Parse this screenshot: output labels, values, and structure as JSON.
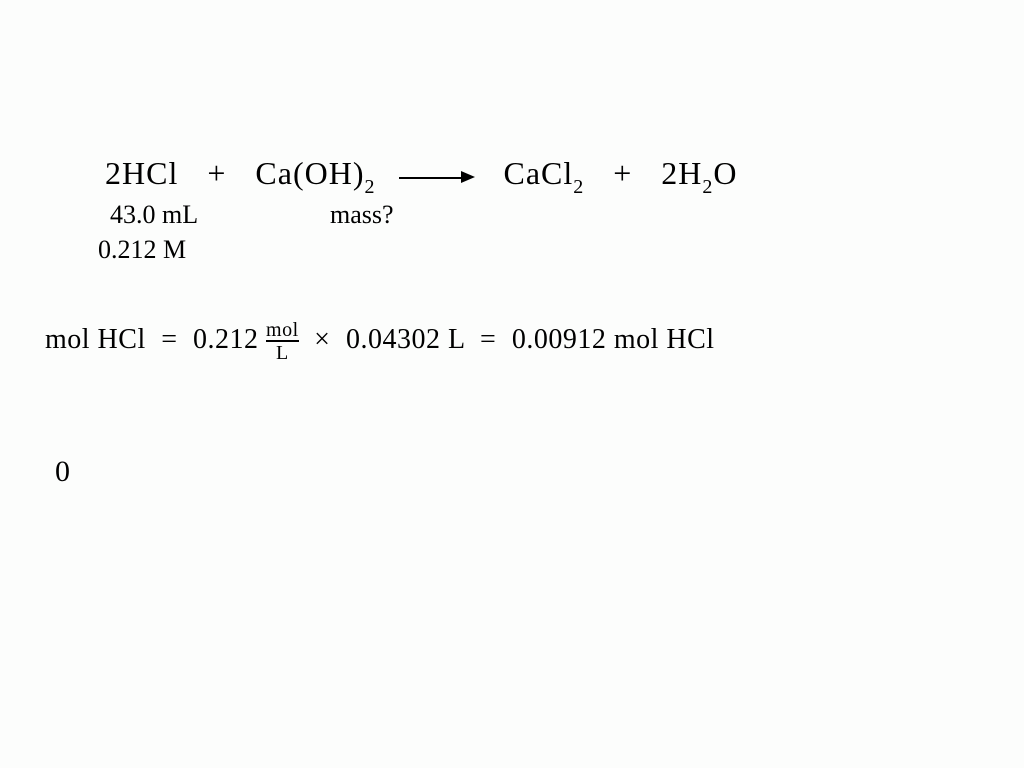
{
  "equation": {
    "hcl_coef": "2",
    "hcl": "HCl",
    "plus1": "+",
    "caoh": "Ca(OH)",
    "caoh_sub": "2",
    "cacl": "CaCl",
    "cacl_sub": "2",
    "plus2": "+",
    "h2o_coef": "2",
    "h2o_h": "H",
    "h2o_hsub": "2",
    "h2o_o": "O"
  },
  "annotations": {
    "volume": "43.0 mL",
    "mass_q": "mass?",
    "molarity": "0.212 M"
  },
  "calculation": {
    "label": "mol HCl",
    "eq1": "=",
    "molarity_val": "0.212",
    "unit_top": "mol",
    "unit_bot": "L",
    "times": "×",
    "volume_L": "0.04302 L",
    "eq2": "=",
    "result": "0.00912 mol HCl"
  },
  "stray": {
    "char": "0"
  },
  "style": {
    "text_color": "#000000",
    "background_color": "#fcfdfc",
    "font_family": "Comic Sans MS, Segoe Script, cursive",
    "equation_fontsize": 32,
    "annotation_fontsize": 26,
    "calc_fontsize": 28,
    "subscript_fontsize": 20
  }
}
